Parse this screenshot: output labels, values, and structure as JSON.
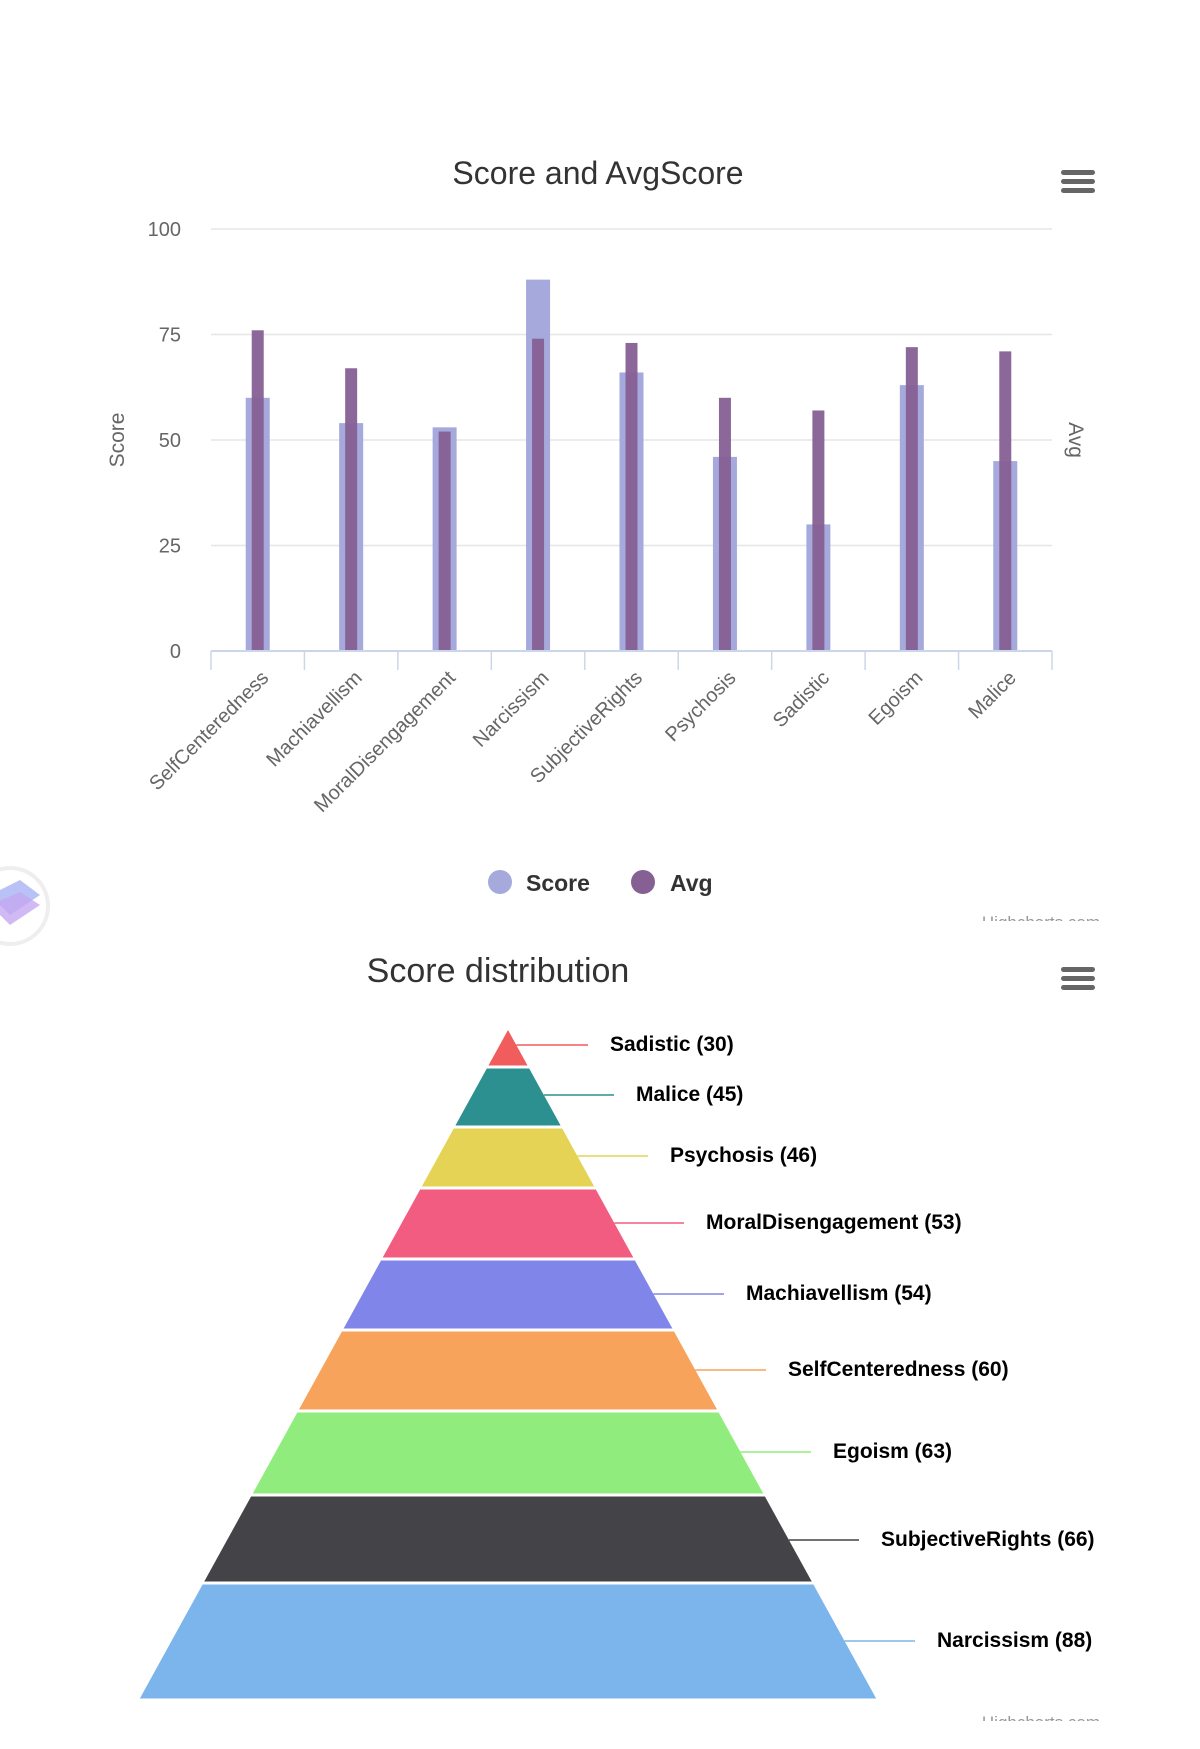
{
  "chart_data": [
    {
      "type": "bar",
      "title": "Score and AvgScore",
      "ylabel": "Score",
      "ylabel_right": "Avg",
      "ylim": [
        0,
        100
      ],
      "yticks": [
        "0",
        "25",
        "50",
        "75",
        "100"
      ],
      "categories": [
        "SelfCenteredness",
        "Machiavellism",
        "MoralDisengagement",
        "Narcissism",
        "SubjectiveRights",
        "Psychosis",
        "Sadistic",
        "Egoism",
        "Malice"
      ],
      "series": [
        {
          "name": "Score",
          "color": "#a5a9db",
          "values": [
            60,
            54,
            53,
            88,
            66,
            46,
            30,
            63,
            45
          ]
        },
        {
          "name": "Avg",
          "color": "#865f93",
          "values": [
            76,
            67,
            52,
            74,
            73,
            60,
            57,
            72,
            71
          ]
        }
      ],
      "legend": "bottom-center",
      "grid": true,
      "credit": "Highcharts.com"
    },
    {
      "type": "pyramid",
      "title": "Score distribution",
      "segments": [
        {
          "name": "Sadistic",
          "value": 30,
          "label": "Sadistic (30)",
          "color": "#f15c5c"
        },
        {
          "name": "Malice",
          "value": 45,
          "label": "Malice (45)",
          "color": "#2b908f"
        },
        {
          "name": "Psychosis",
          "value": 46,
          "label": "Psychosis (46)",
          "color": "#e4d354"
        },
        {
          "name": "MoralDisengagement",
          "value": 53,
          "label": "MoralDisengagement (53)",
          "color": "#f15c80"
        },
        {
          "name": "Machiavellism",
          "value": 54,
          "label": "Machiavellism (54)",
          "color": "#8085e9"
        },
        {
          "name": "SelfCenteredness",
          "value": 60,
          "label": "SelfCenteredness (60)",
          "color": "#f7a35c"
        },
        {
          "name": "Egoism",
          "value": 63,
          "label": "Egoism (63)",
          "color": "#90ed7d"
        },
        {
          "name": "SubjectiveRights",
          "value": 66,
          "label": "SubjectiveRights (66)",
          "color": "#434348"
        },
        {
          "name": "Narcissism",
          "value": 88,
          "label": "Narcissism (88)",
          "color": "#7cb5ec"
        }
      ],
      "credit": "Highcharts.com"
    }
  ]
}
